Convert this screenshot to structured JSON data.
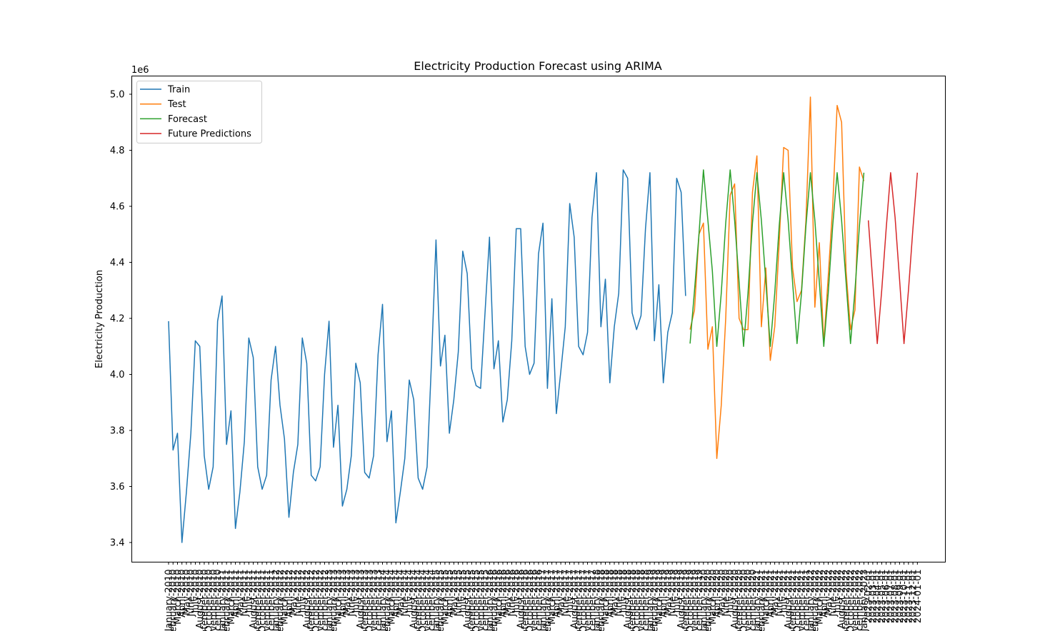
{
  "chart_data": {
    "type": "line",
    "title": "Electricity Production Forecast using ARIMA",
    "xlabel": "",
    "ylabel": "Electricity Production",
    "y_offset_label": "1e6",
    "y_scale": 1000000,
    "ylim": [
      3.33,
      5.065
    ],
    "yticks": [
      3.4,
      3.6,
      3.8,
      4.0,
      4.2,
      4.4,
      4.6,
      4.8,
      5.0
    ],
    "ytick_labels": [
      "3.4",
      "3.6",
      "3.8",
      "4.0",
      "4.2",
      "4.4",
      "4.6",
      "4.8",
      "5.0"
    ],
    "grid": false,
    "legend_position": "top-left",
    "x_categories": [
      "January-2010",
      "February-2010",
      "March-2010",
      "April-2010",
      "May-2010",
      "June-2010",
      "July-2010",
      "August-2010",
      "September-2010",
      "October-2010",
      "November-2010",
      "December-2010",
      "January-2011",
      "February-2011",
      "March-2011",
      "April-2011",
      "May-2011",
      "June-2011",
      "July-2011",
      "August-2011",
      "September-2011",
      "October-2011",
      "November-2011",
      "December-2011",
      "January-2012",
      "February-2012",
      "March-2012",
      "April-2012",
      "May-2012",
      "June-2012",
      "July-2012",
      "August-2012",
      "September-2012",
      "October-2012",
      "November-2012",
      "December-2012",
      "January-2013",
      "February-2013",
      "March-2013",
      "April-2013",
      "May-2013",
      "June-2013",
      "July-2013",
      "August-2013",
      "September-2013",
      "October-2013",
      "November-2013",
      "December-2013",
      "January-2014",
      "February-2014",
      "March-2014",
      "April-2014",
      "May-2014",
      "June-2014",
      "July-2014",
      "August-2014",
      "September-2014",
      "October-2014",
      "November-2014",
      "December-2014",
      "January-2015",
      "February-2015",
      "March-2015",
      "April-2015",
      "May-2015",
      "June-2015",
      "July-2015",
      "August-2015",
      "September-2015",
      "October-2015",
      "November-2015",
      "December-2015",
      "January-2016",
      "February-2016",
      "March-2016",
      "April-2016",
      "May-2016",
      "June-2016",
      "July-2016",
      "August-2016",
      "September-2016",
      "October-2016",
      "November-2016",
      "December-2016",
      "January-2017",
      "February-2017",
      "March-2017",
      "April-2017",
      "May-2017",
      "June-2017",
      "July-2017",
      "August-2017",
      "September-2017",
      "October-2017",
      "November-2017",
      "December-2017",
      "January-2018",
      "February-2018",
      "March-2018",
      "April-2018",
      "May-2018",
      "June-2018",
      "July-2018",
      "August-2018",
      "September-2018",
      "October-2018",
      "November-2018",
      "December-2018",
      "January-2019",
      "February-2019",
      "March-2019",
      "April-2019",
      "May-2019",
      "June-2019",
      "July-2019",
      "August-2019",
      "September-2019",
      "October-2019",
      "November-2019",
      "December-2019",
      "January-2020",
      "February-2020",
      "March-2020",
      "April-2020",
      "May-2020",
      "June-2020",
      "July-2020",
      "August-2020",
      "September-2020",
      "October-2020",
      "November-2020",
      "December-2020",
      "January-2021",
      "February-2021",
      "March-2021",
      "April-2021",
      "May-2021",
      "June-2021",
      "July-2021",
      "August-2021",
      "September-2021",
      "October-2021",
      "November-2021",
      "December-2021",
      "January-2022",
      "February-2022",
      "March-2022",
      "April-2022",
      "May-2022",
      "June-2022",
      "July-2022",
      "August-2022",
      "September-2022",
      "October-2022",
      "November-2022",
      "December-2022",
      "January-2023",
      "2023-02-01",
      "2023-03-01",
      "2023-04-01",
      "2023-05-01",
      "2023-06-01",
      "2023-07-01",
      "2023-08-01",
      "2023-09-01",
      "2023-10-01",
      "2023-11-01",
      "2023-12-01",
      "2024-01-01"
    ],
    "series": [
      {
        "name": "Train",
        "color": "#1f77b4",
        "x_start": 0,
        "values": [
          4.19,
          3.73,
          3.79,
          3.4,
          3.58,
          3.79,
          4.12,
          4.1,
          3.71,
          3.59,
          3.67,
          4.19,
          4.28,
          3.75,
          3.87,
          3.45,
          3.58,
          3.76,
          4.13,
          4.06,
          3.67,
          3.59,
          3.64,
          3.98,
          4.1,
          3.89,
          3.77,
          3.49,
          3.65,
          3.75,
          4.13,
          4.04,
          3.64,
          3.62,
          3.67,
          4.0,
          4.19,
          3.74,
          3.89,
          3.53,
          3.59,
          3.71,
          4.04,
          3.97,
          3.65,
          3.63,
          3.71,
          4.07,
          4.25,
          3.76,
          3.87,
          3.47,
          3.58,
          3.7,
          3.98,
          3.91,
          3.63,
          3.59,
          3.67,
          4.05,
          4.48,
          4.03,
          4.14,
          3.79,
          3.91,
          4.08,
          4.44,
          4.36,
          4.02,
          3.96,
          3.95,
          4.22,
          4.49,
          4.02,
          4.12,
          3.83,
          3.91,
          4.12,
          4.52,
          4.52,
          4.1,
          4.0,
          4.04,
          4.43,
          4.54,
          3.95,
          4.27,
          3.86,
          4.01,
          4.17,
          4.61,
          4.49,
          4.1,
          4.07,
          4.15,
          4.56,
          4.72,
          4.17,
          4.34,
          3.97,
          4.17,
          4.29,
          4.73,
          4.7,
          4.22,
          4.16,
          4.21,
          4.52,
          4.72,
          4.12,
          4.32,
          3.97,
          4.15,
          4.22,
          4.7,
          4.65,
          4.28
        ]
      },
      {
        "name": "Test",
        "color": "#ff7f0e",
        "x_start": 117,
        "values": [
          4.16,
          4.23,
          4.5,
          4.54,
          4.09,
          4.17,
          3.7,
          3.89,
          4.2,
          4.64,
          4.68,
          4.2,
          4.16,
          4.16,
          4.65,
          4.78,
          4.17,
          4.38,
          4.05,
          4.17,
          4.47,
          4.81,
          4.8,
          4.38,
          4.26,
          4.3,
          4.55,
          4.99,
          4.24,
          4.47,
          4.11,
          4.35,
          4.6,
          4.96,
          4.9,
          4.37,
          4.16,
          4.23,
          4.74,
          4.69
        ]
      },
      {
        "name": "Forecast",
        "color": "#2ca02c",
        "x_start": 117,
        "values": [
          4.11,
          4.3,
          4.5,
          4.73,
          4.55,
          4.37,
          4.1,
          4.29,
          4.54,
          4.73,
          4.55,
          4.33,
          4.1,
          4.29,
          4.54,
          4.72,
          4.55,
          4.33,
          4.1,
          4.29,
          4.53,
          4.72,
          4.55,
          4.33,
          4.11,
          4.29,
          4.53,
          4.72,
          4.55,
          4.33,
          4.1,
          4.29,
          4.53,
          4.72,
          4.55,
          4.33,
          4.11,
          4.3,
          4.53,
          4.72
        ]
      },
      {
        "name": "Future Predictions",
        "color": "#d62728",
        "x_start": 157,
        "values": [
          4.55,
          4.33,
          4.11,
          4.3,
          4.52,
          4.72,
          4.56,
          4.34,
          4.11,
          4.3,
          4.52,
          4.72
        ]
      }
    ]
  }
}
